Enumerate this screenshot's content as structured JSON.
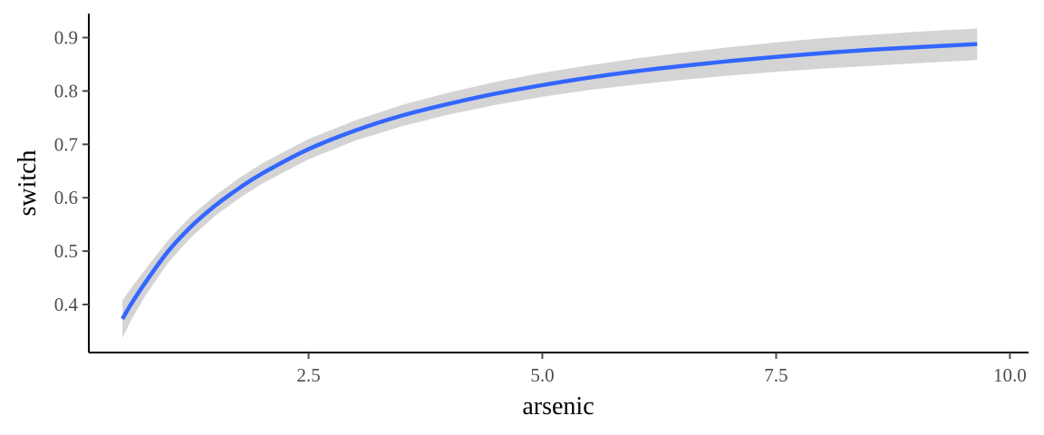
{
  "chart_data": {
    "type": "line",
    "title": "",
    "xlabel": "arsenic",
    "ylabel": "switch",
    "xlim": [
      0.15,
      10.2
    ],
    "ylim": [
      0.31,
      0.945
    ],
    "x_ticks": [
      {
        "value": 2.5,
        "label": "2.5"
      },
      {
        "value": 5.0,
        "label": "5.0"
      },
      {
        "value": 7.5,
        "label": "7.5"
      },
      {
        "value": 10.0,
        "label": "10.0"
      }
    ],
    "y_ticks": [
      {
        "value": 0.4,
        "label": "0.4"
      },
      {
        "value": 0.5,
        "label": "0.5"
      },
      {
        "value": 0.6,
        "label": "0.6"
      },
      {
        "value": 0.7,
        "label": "0.7"
      },
      {
        "value": 0.8,
        "label": "0.8"
      },
      {
        "value": 0.9,
        "label": "0.9"
      }
    ],
    "grid": false,
    "legend": "none",
    "series": [
      {
        "x": [
          0.51,
          0.6,
          0.75,
          1.0,
          1.25,
          1.5,
          1.75,
          2.0,
          2.5,
          3.0,
          3.5,
          4.0,
          4.5,
          5.0,
          5.5,
          6.0,
          6.5,
          7.0,
          7.5,
          8.0,
          8.5,
          9.0,
          9.65
        ],
        "y": [
          0.373,
          0.4,
          0.44,
          0.5,
          0.547,
          0.585,
          0.617,
          0.645,
          0.691,
          0.726,
          0.754,
          0.776,
          0.795,
          0.811,
          0.825,
          0.837,
          0.847,
          0.856,
          0.864,
          0.871,
          0.877,
          0.882,
          0.888
        ],
        "ci_low": [
          0.337,
          0.37,
          0.415,
          0.479,
          0.527,
          0.566,
          0.598,
          0.626,
          0.672,
          0.707,
          0.734,
          0.756,
          0.774,
          0.789,
          0.802,
          0.812,
          0.821,
          0.829,
          0.836,
          0.842,
          0.847,
          0.852,
          0.858
        ],
        "ci_high": [
          0.408,
          0.43,
          0.465,
          0.521,
          0.567,
          0.604,
          0.636,
          0.664,
          0.71,
          0.745,
          0.774,
          0.797,
          0.817,
          0.834,
          0.848,
          0.861,
          0.872,
          0.882,
          0.891,
          0.899,
          0.905,
          0.911,
          0.917
        ]
      }
    ]
  },
  "colors": {
    "line": "#3366ff",
    "ribbon": "#d4d4d4",
    "axis": "#000000",
    "tick_text": "#4d4d4d"
  }
}
